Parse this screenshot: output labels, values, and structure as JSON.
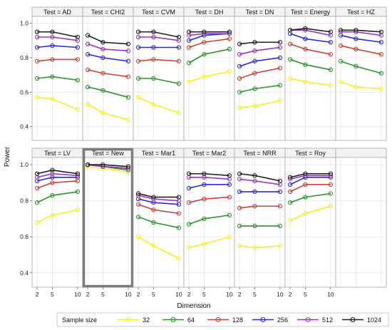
{
  "chart_data": {
    "type": "line",
    "panel_layout": "2 rows x 7 columns",
    "x": [
      2,
      5,
      10
    ],
    "x_ticks": [
      "2",
      "5",
      "10"
    ],
    "y_ticks": [
      "0.4",
      "0.6",
      "0.8",
      "1.0"
    ],
    "ylim": [
      0.32,
      1.04
    ],
    "xlim": [
      1,
      11
    ],
    "xlabel": "Dimension",
    "ylabel": "Power",
    "grid": true,
    "legend_title": "Sample size",
    "legend_position": "bottom",
    "series_names": [
      "32",
      "64",
      "128",
      "256",
      "512",
      "1024"
    ],
    "colors": {
      "32": "#f2f224",
      "64": "#2a962a",
      "128": "#c8423a",
      "256": "#2b2bd6",
      "512": "#9a36b8",
      "1024": "#1e1e1e",
      "highlight_border": "#7a7a7a",
      "grid": "#e6e6e6",
      "strip_bg": "#f2f2f2"
    },
    "highlighted_panel": "Test = New",
    "panels": [
      {
        "title": "Test = AD",
        "series": {
          "32": [
            0.57,
            0.56,
            0.5
          ],
          "64": [
            0.68,
            0.69,
            0.67
          ],
          "128": [
            0.78,
            0.79,
            0.79
          ],
          "256": [
            0.86,
            0.87,
            0.86
          ],
          "512": [
            0.92,
            0.92,
            0.9
          ],
          "1024": [
            0.95,
            0.95,
            0.92
          ]
        }
      },
      {
        "title": "Test = CHI2",
        "series": {
          "32": [
            0.53,
            0.48,
            0.44
          ],
          "64": [
            0.63,
            0.61,
            0.57
          ],
          "128": [
            0.73,
            0.71,
            0.69
          ],
          "256": [
            0.82,
            0.8,
            0.78
          ],
          "512": [
            0.88,
            0.85,
            0.84
          ],
          "1024": [
            0.93,
            0.89,
            0.88
          ]
        }
      },
      {
        "title": "Test = CVM",
        "series": {
          "32": [
            0.57,
            0.53,
            0.48
          ],
          "64": [
            0.68,
            0.68,
            0.65
          ],
          "128": [
            0.78,
            0.79,
            0.78
          ],
          "256": [
            0.86,
            0.86,
            0.86
          ],
          "512": [
            0.92,
            0.92,
            0.9
          ],
          "1024": [
            0.95,
            0.95,
            0.92
          ]
        }
      },
      {
        "title": "Test = DH",
        "series": {
          "32": [
            0.66,
            0.69,
            0.72
          ],
          "64": [
            0.77,
            0.82,
            0.85
          ],
          "128": [
            0.86,
            0.89,
            0.91
          ],
          "256": [
            0.9,
            0.93,
            0.94
          ],
          "512": [
            0.93,
            0.94,
            0.94
          ],
          "1024": [
            0.95,
            0.95,
            0.95
          ]
        }
      },
      {
        "title": "Test = DN",
        "series": {
          "32": [
            0.51,
            0.52,
            0.55
          ],
          "64": [
            0.6,
            0.62,
            0.64
          ],
          "128": [
            0.68,
            0.71,
            0.74
          ],
          "256": [
            0.75,
            0.78,
            0.8
          ],
          "512": [
            0.82,
            0.84,
            0.86
          ],
          "1024": [
            0.88,
            0.89,
            0.89
          ]
        }
      },
      {
        "title": "Test = Energy",
        "series": {
          "32": [
            0.68,
            0.66,
            0.64
          ],
          "64": [
            0.79,
            0.76,
            0.73
          ],
          "128": [
            0.88,
            0.85,
            0.82
          ],
          "256": [
            0.94,
            0.91,
            0.89
          ],
          "512": [
            0.96,
            0.96,
            0.93
          ],
          "1024": [
            0.96,
            0.97,
            0.95
          ]
        }
      },
      {
        "title": "Test = HZ",
        "series": {
          "32": [
            0.66,
            0.63,
            0.62
          ],
          "64": [
            0.78,
            0.75,
            0.71
          ],
          "128": [
            0.87,
            0.85,
            0.82
          ],
          "256": [
            0.93,
            0.91,
            0.89
          ],
          "512": [
            0.95,
            0.95,
            0.93
          ],
          "1024": [
            0.96,
            0.96,
            0.95
          ]
        }
      },
      {
        "title": "Test = LV",
        "series": {
          "32": [
            0.68,
            0.72,
            0.75
          ],
          "64": [
            0.79,
            0.83,
            0.85
          ],
          "128": [
            0.87,
            0.9,
            0.91
          ],
          "256": [
            0.91,
            0.93,
            0.93
          ],
          "512": [
            0.93,
            0.95,
            0.94
          ],
          "1024": [
            0.95,
            0.97,
            0.95
          ]
        }
      },
      {
        "title": "Test = New",
        "series": {
          "32": [
            0.99,
            0.98,
            0.96
          ],
          "64": [
            1.0,
            0.99,
            0.97
          ],
          "128": [
            1.0,
            0.99,
            0.98
          ],
          "256": [
            1.0,
            0.99,
            0.98
          ],
          "512": [
            1.0,
            0.99,
            0.98
          ],
          "1024": [
            1.0,
            1.0,
            0.99
          ]
        }
      },
      {
        "title": "Test = Mar1",
        "series": {
          "32": [
            0.6,
            0.55,
            0.48
          ],
          "64": [
            0.71,
            0.68,
            0.65
          ],
          "128": [
            0.78,
            0.75,
            0.73
          ],
          "256": [
            0.81,
            0.79,
            0.78
          ],
          "512": [
            0.83,
            0.81,
            0.8
          ],
          "1024": [
            0.84,
            0.82,
            0.82
          ]
        }
      },
      {
        "title": "Test = Mar2",
        "series": {
          "32": [
            0.54,
            0.56,
            0.6
          ],
          "64": [
            0.67,
            0.7,
            0.72
          ],
          "128": [
            0.79,
            0.81,
            0.82
          ],
          "256": [
            0.87,
            0.89,
            0.89
          ],
          "512": [
            0.93,
            0.93,
            0.92
          ],
          "1024": [
            0.95,
            0.95,
            0.94
          ]
        }
      },
      {
        "title": "Test = NRR",
        "series": {
          "32": [
            0.55,
            0.54,
            0.55
          ],
          "64": [
            0.66,
            0.66,
            0.66
          ],
          "128": [
            0.76,
            0.77,
            0.77
          ],
          "256": [
            0.85,
            0.85,
            0.85
          ],
          "512": [
            0.92,
            0.91,
            0.89
          ],
          "1024": [
            0.95,
            0.94,
            0.91
          ]
        }
      },
      {
        "title": "Test = Roy",
        "series": {
          "32": [
            0.69,
            0.73,
            0.77
          ],
          "64": [
            0.79,
            0.82,
            0.84
          ],
          "128": [
            0.85,
            0.89,
            0.89
          ],
          "256": [
            0.89,
            0.93,
            0.93
          ],
          "512": [
            0.92,
            0.94,
            0.94
          ],
          "1024": [
            0.93,
            0.95,
            0.95
          ]
        }
      }
    ]
  }
}
